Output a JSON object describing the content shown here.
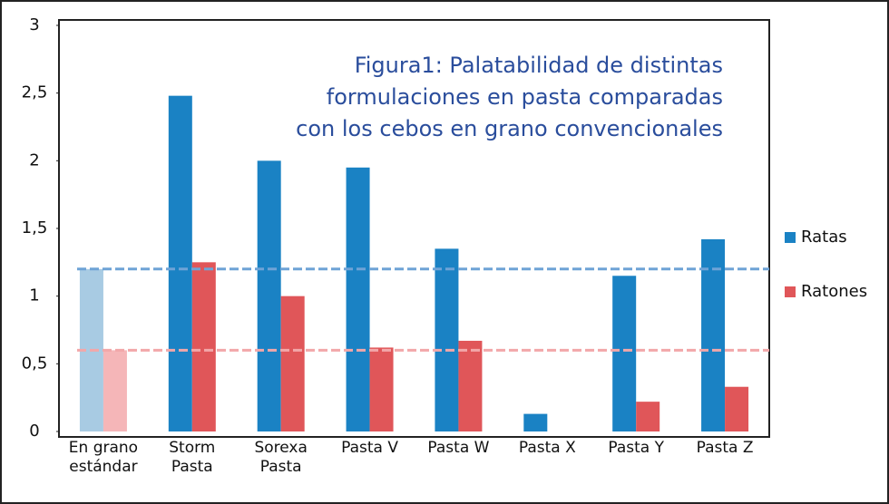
{
  "chart_data": {
    "type": "bar",
    "title": "Figura1: Palatabilidad de distintas\nformulaciones en pasta comparadas\ncon los cebos en grano convencionales",
    "categories": [
      "En grano\nestándar",
      "Storm\nPasta",
      "Sorexa\nPasta",
      "Pasta V",
      "Pasta W",
      "Pasta X",
      "Pasta Y",
      "Pasta Z"
    ],
    "series": [
      {
        "name": "Ratas",
        "color": "#1a82c4",
        "colors": [
          "#a8cbe3",
          "#1a82c4",
          "#1a82c4",
          "#1a82c4",
          "#1a82c4",
          "#1a82c4",
          "#1a82c4",
          "#1a82c4"
        ],
        "values": [
          1.2,
          2.48,
          2.0,
          1.95,
          1.35,
          0.13,
          1.15,
          1.42
        ]
      },
      {
        "name": "Ratones",
        "color": "#e05659",
        "colors": [
          "#f5b6b8",
          "#e05659",
          "#e05659",
          "#e05659",
          "#e05659",
          "#e05659",
          "#e05659",
          "#e05659"
        ],
        "values": [
          0.6,
          1.25,
          1.0,
          0.62,
          0.67,
          0,
          0.22,
          0.33
        ]
      }
    ],
    "reference_lines": [
      {
        "value": 1.2,
        "color": "#6fa3d6"
      },
      {
        "value": 0.6,
        "color": "#f2a7a9"
      }
    ],
    "ylim": [
      0,
      3
    ],
    "yticks": [
      0,
      {
        "value": 0.5,
        "label": "0,5"
      },
      1,
      {
        "value": 1.5,
        "label": "1,5"
      },
      2,
      {
        "value": 2.5,
        "label": "2,5"
      },
      3
    ],
    "legend": "right"
  }
}
